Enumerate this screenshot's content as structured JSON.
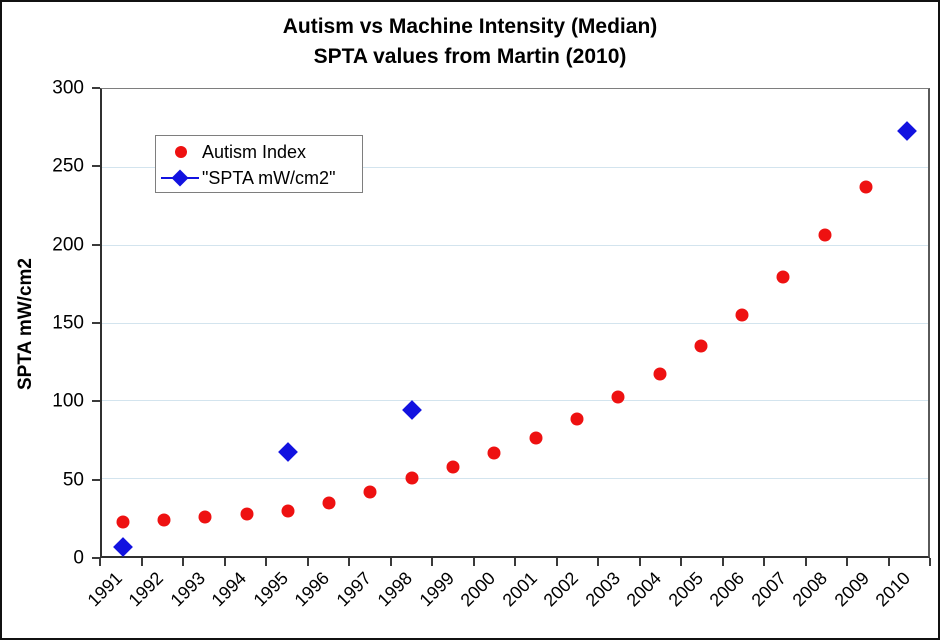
{
  "chart_data": {
    "type": "scatter",
    "title": "Autism vs Machine Intensity (Median)",
    "subtitle": "SPTA values from Martin (2010)",
    "ylabel": "SPTA mW/cm2",
    "xlabel": "",
    "ylim": [
      0,
      300
    ],
    "ytick_step": 50,
    "ytick_labels": [
      "0",
      "50",
      "100",
      "150",
      "200",
      "250",
      "300"
    ],
    "grid": "horizontal-only",
    "legend_position": "inside-top-left",
    "categories": [
      "1991",
      "1992",
      "1993",
      "1994",
      "1995",
      "1996",
      "1997",
      "1998",
      "1999",
      "2000",
      "2001",
      "2002",
      "2003",
      "2004",
      "2005",
      "2006",
      "2007",
      "2008",
      "2009",
      "2010"
    ],
    "series": [
      {
        "name": "Autism Index",
        "marker": "circle",
        "color": "#ee1111",
        "values": [
          22,
          23,
          25,
          27,
          29,
          34,
          41,
          50,
          57,
          66,
          76,
          88,
          102,
          117,
          135,
          155,
          179,
          206,
          237,
          null
        ]
      },
      {
        "name": "\"SPTA mW/cm2\"",
        "marker": "diamond",
        "color": "#1212e0",
        "values": [
          6,
          null,
          null,
          null,
          67,
          null,
          null,
          94,
          null,
          null,
          null,
          null,
          null,
          null,
          null,
          null,
          null,
          null,
          null,
          273
        ]
      }
    ],
    "colors": {
      "gridline": "#d3e4ee",
      "axis": "#3a3a3a",
      "text": "#000000"
    }
  }
}
